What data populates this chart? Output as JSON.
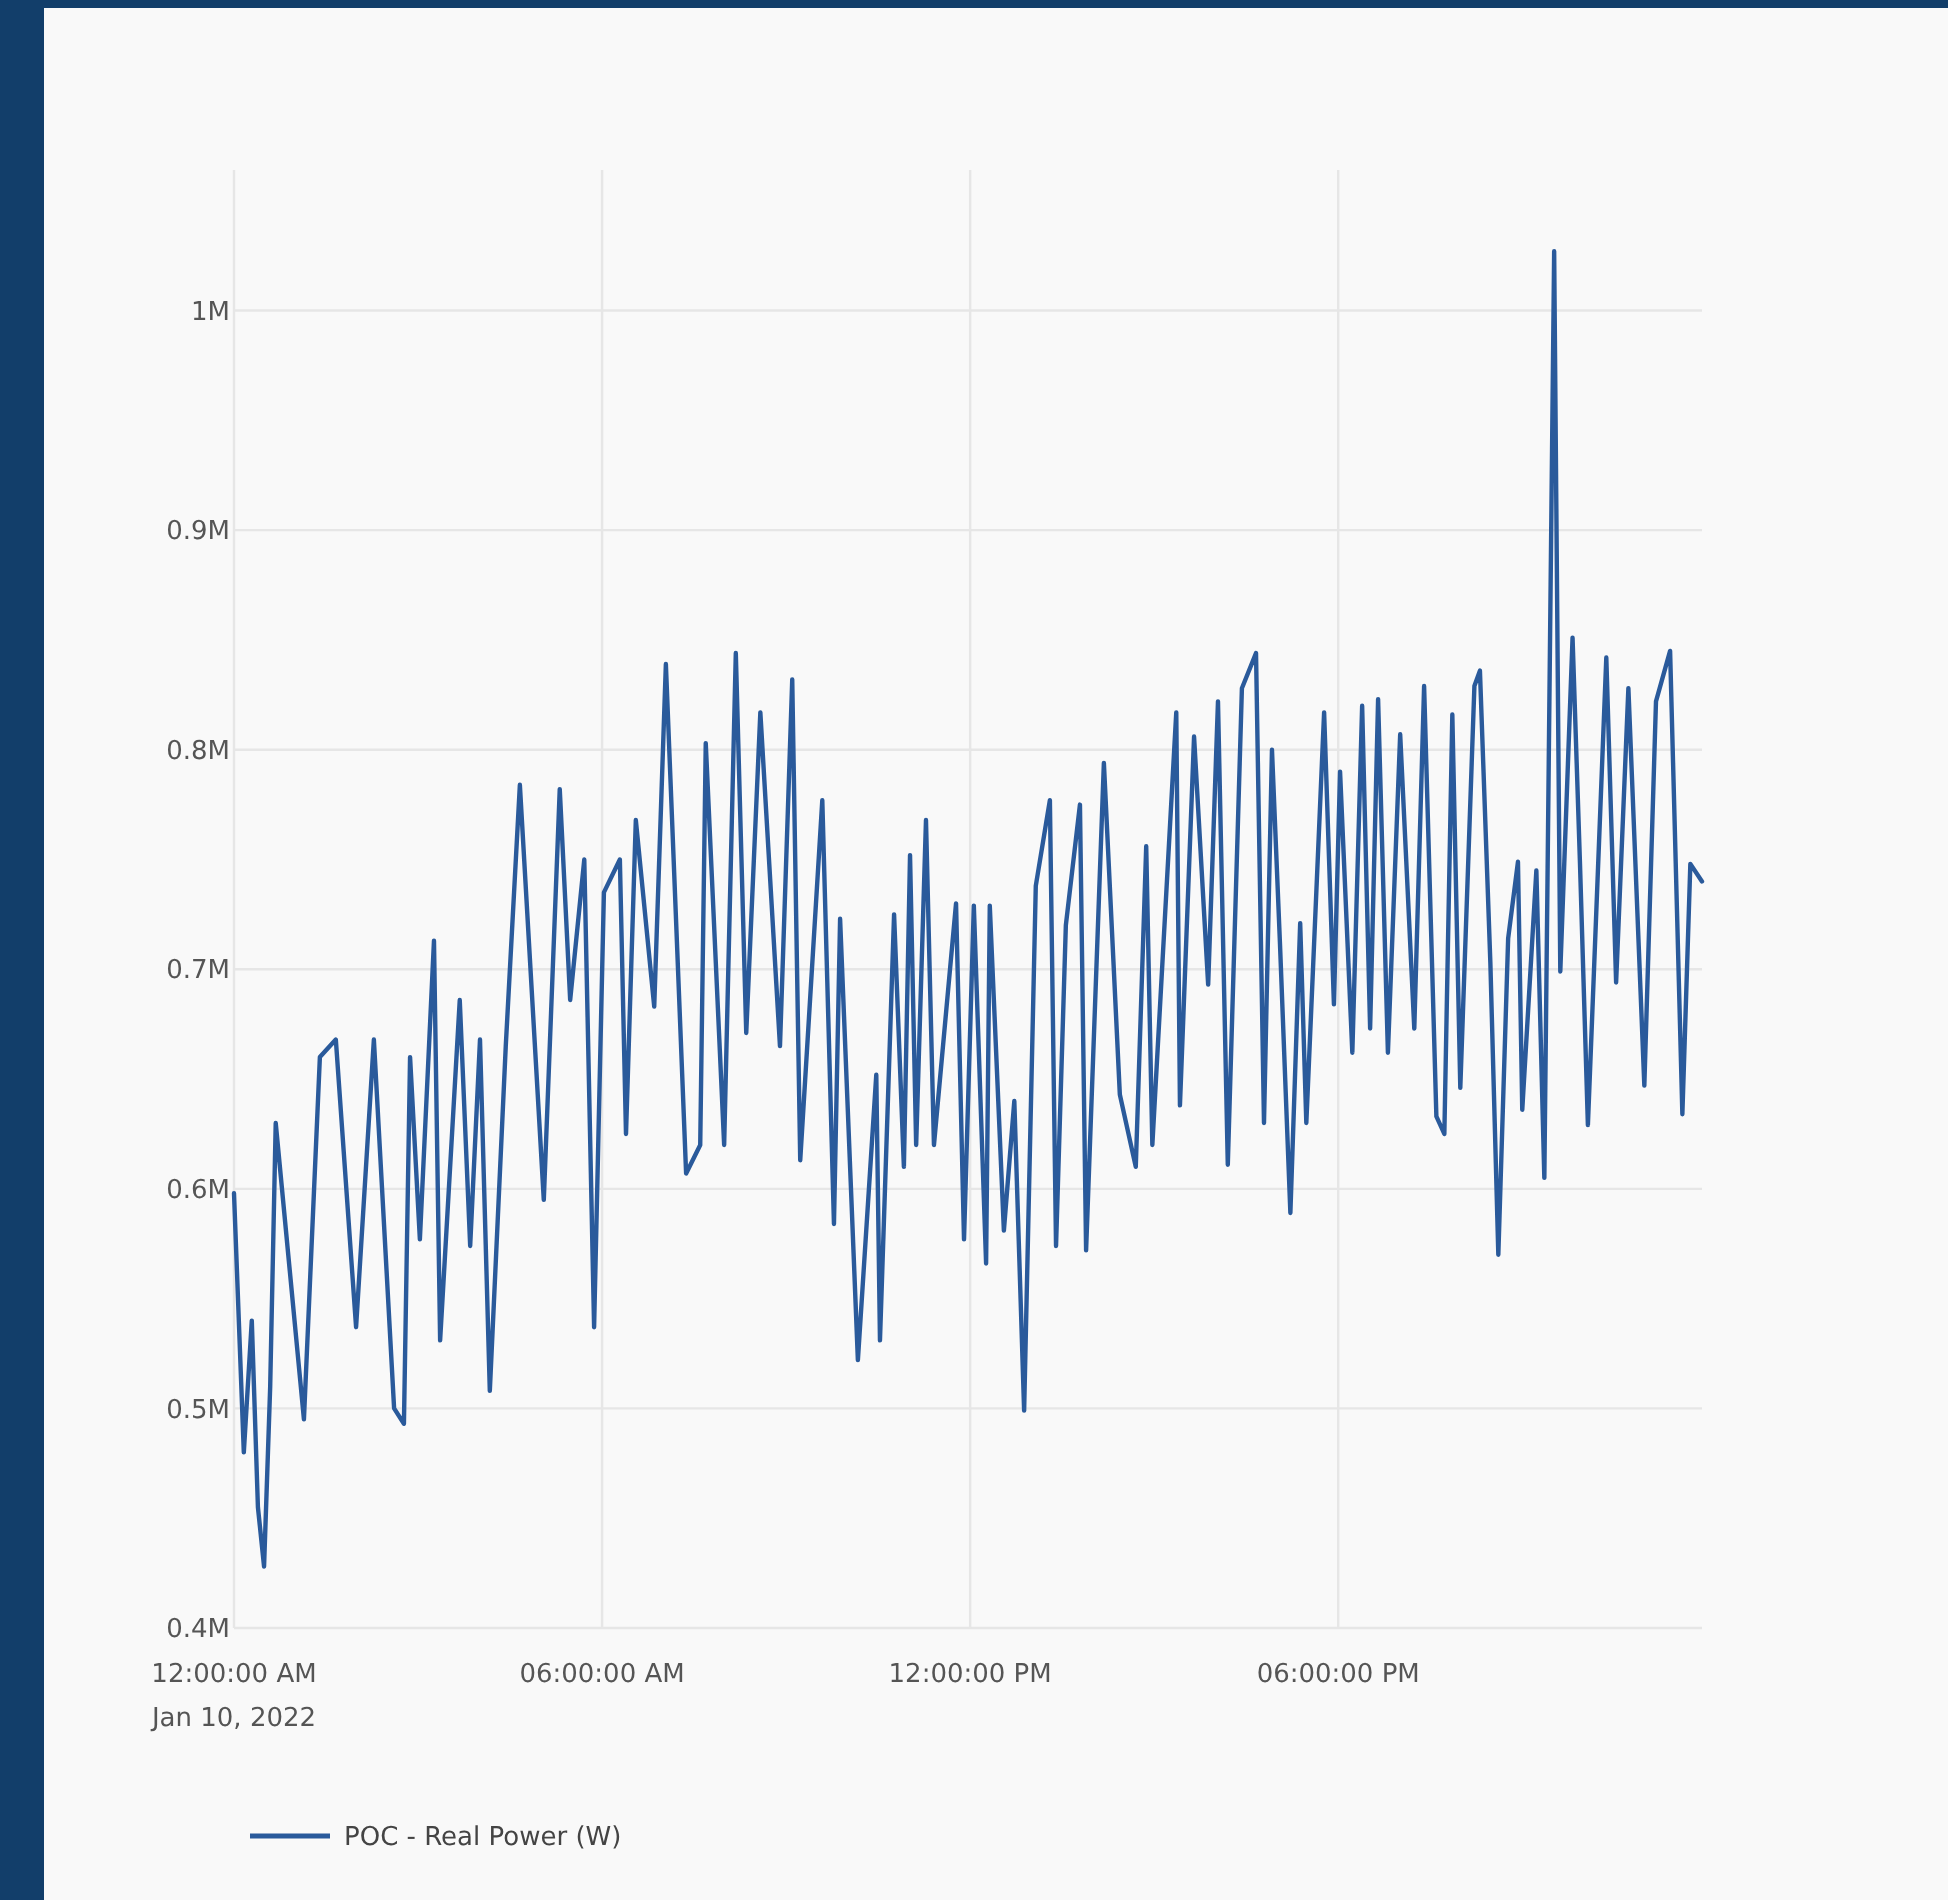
{
  "chart_data": {
    "type": "line",
    "xlim": [
      0,
      23.93
    ],
    "xticks": [
      {
        "value": 0,
        "label": "12:00:00 AM\nJan 10, 2022"
      },
      {
        "value": 6,
        "label": "06:00:00 AM"
      },
      {
        "value": 12,
        "label": "12:00:00 PM"
      },
      {
        "value": 18,
        "label": "06:00:00 PM"
      }
    ],
    "ylim": [
      400000,
      1064000
    ],
    "yticks": [
      {
        "value": 400000,
        "label": "0.4M"
      },
      {
        "value": 500000,
        "label": "0.5M"
      },
      {
        "value": 600000,
        "label": "0.6M"
      },
      {
        "value": 700000,
        "label": "0.7M"
      },
      {
        "value": 800000,
        "label": "0.8M"
      },
      {
        "value": 900000,
        "label": "0.9M"
      },
      {
        "value": 1000000,
        "label": "1M"
      }
    ],
    "grid": true,
    "legend": "bottom left",
    "line_style": "solid",
    "marker": "none",
    "x": [
      0,
      0.16,
      0.29,
      0.39,
      0.49,
      0.59,
      0.68,
      1.14,
      1.4,
      1.66,
      1.99,
      2.28,
      2.61,
      2.77,
      2.87,
      3.03,
      3.26,
      3.36,
      3.68,
      3.85,
      4.01,
      4.17,
      4.43,
      4.66,
      5.05,
      5.31,
      5.48,
      5.71,
      5.87,
      6.03,
      6.29,
      6.39,
      6.55,
      6.85,
      7.04,
      7.37,
      7.6,
      7.69,
      7.99,
      8.18,
      8.35,
      8.58,
      8.9,
      9.1,
      9.23,
      9.59,
      9.78,
      9.88,
      10.17,
      10.47,
      10.53,
      10.76,
      10.92,
      11.02,
      11.12,
      11.28,
      11.41,
      11.77,
      11.9,
      12.06,
      12.26,
      12.32,
      12.55,
      12.72,
      12.88,
      13.07,
      13.3,
      13.4,
      13.56,
      13.79,
      13.89,
      14.18,
      14.44,
      14.7,
      14.87,
      14.97,
      15.36,
      15.42,
      15.65,
      15.88,
      16.04,
      16.2,
      16.43,
      16.66,
      16.79,
      16.92,
      17.05,
      17.22,
      17.38,
      17.48,
      17.77,
      17.93,
      18.03,
      18.23,
      18.39,
      18.52,
      18.65,
      18.81,
      19.01,
      19.24,
      19.4,
      19.6,
      19.73,
      19.86,
      19.99,
      20.22,
      20.31,
      20.48,
      20.61,
      20.77,
      20.93,
      21.0,
      21.23,
      21.36,
      21.52,
      21.62,
      21.82,
      21.94,
      22.07,
      22.37,
      22.53,
      22.73,
      22.99,
      23.18,
      23.41,
      23.61,
      23.74,
      23.93
    ],
    "series": [
      {
        "name": "POC - Real Power (W)",
        "color": "#2a5a9b",
        "values": [
          598000,
          480000,
          540000,
          455000,
          428000,
          510000,
          630000,
          495000,
          660000,
          668000,
          537000,
          668000,
          500000,
          493000,
          660000,
          577000,
          713000,
          531000,
          686000,
          574000,
          668000,
          508000,
          665000,
          784000,
          595000,
          782000,
          686000,
          750000,
          537000,
          735000,
          750000,
          625000,
          768000,
          683000,
          839000,
          607000,
          620000,
          803000,
          620000,
          844000,
          671000,
          817000,
          665000,
          832000,
          613000,
          777000,
          584000,
          723000,
          522000,
          652000,
          531000,
          725000,
          610000,
          752000,
          620000,
          768000,
          620000,
          730000,
          577000,
          729000,
          566000,
          729000,
          581000,
          640000,
          499000,
          738000,
          777000,
          574000,
          720000,
          775000,
          572000,
          794000,
          643000,
          610000,
          756000,
          620000,
          817000,
          638000,
          806000,
          693000,
          822000,
          611000,
          828000,
          844000,
          630000,
          800000,
          712000,
          589000,
          721000,
          630000,
          817000,
          684000,
          790000,
          662000,
          820000,
          673000,
          823000,
          662000,
          807000,
          673000,
          829000,
          633000,
          625000,
          816000,
          646000,
          829000,
          836000,
          703000,
          570000,
          714000,
          749000,
          636000,
          745000,
          605000,
          1027000,
          699000,
          851000,
          749000,
          629000,
          842000,
          694000,
          828000,
          647000,
          822000,
          845000,
          634000,
          748000,
          740000
        ]
      }
    ]
  }
}
